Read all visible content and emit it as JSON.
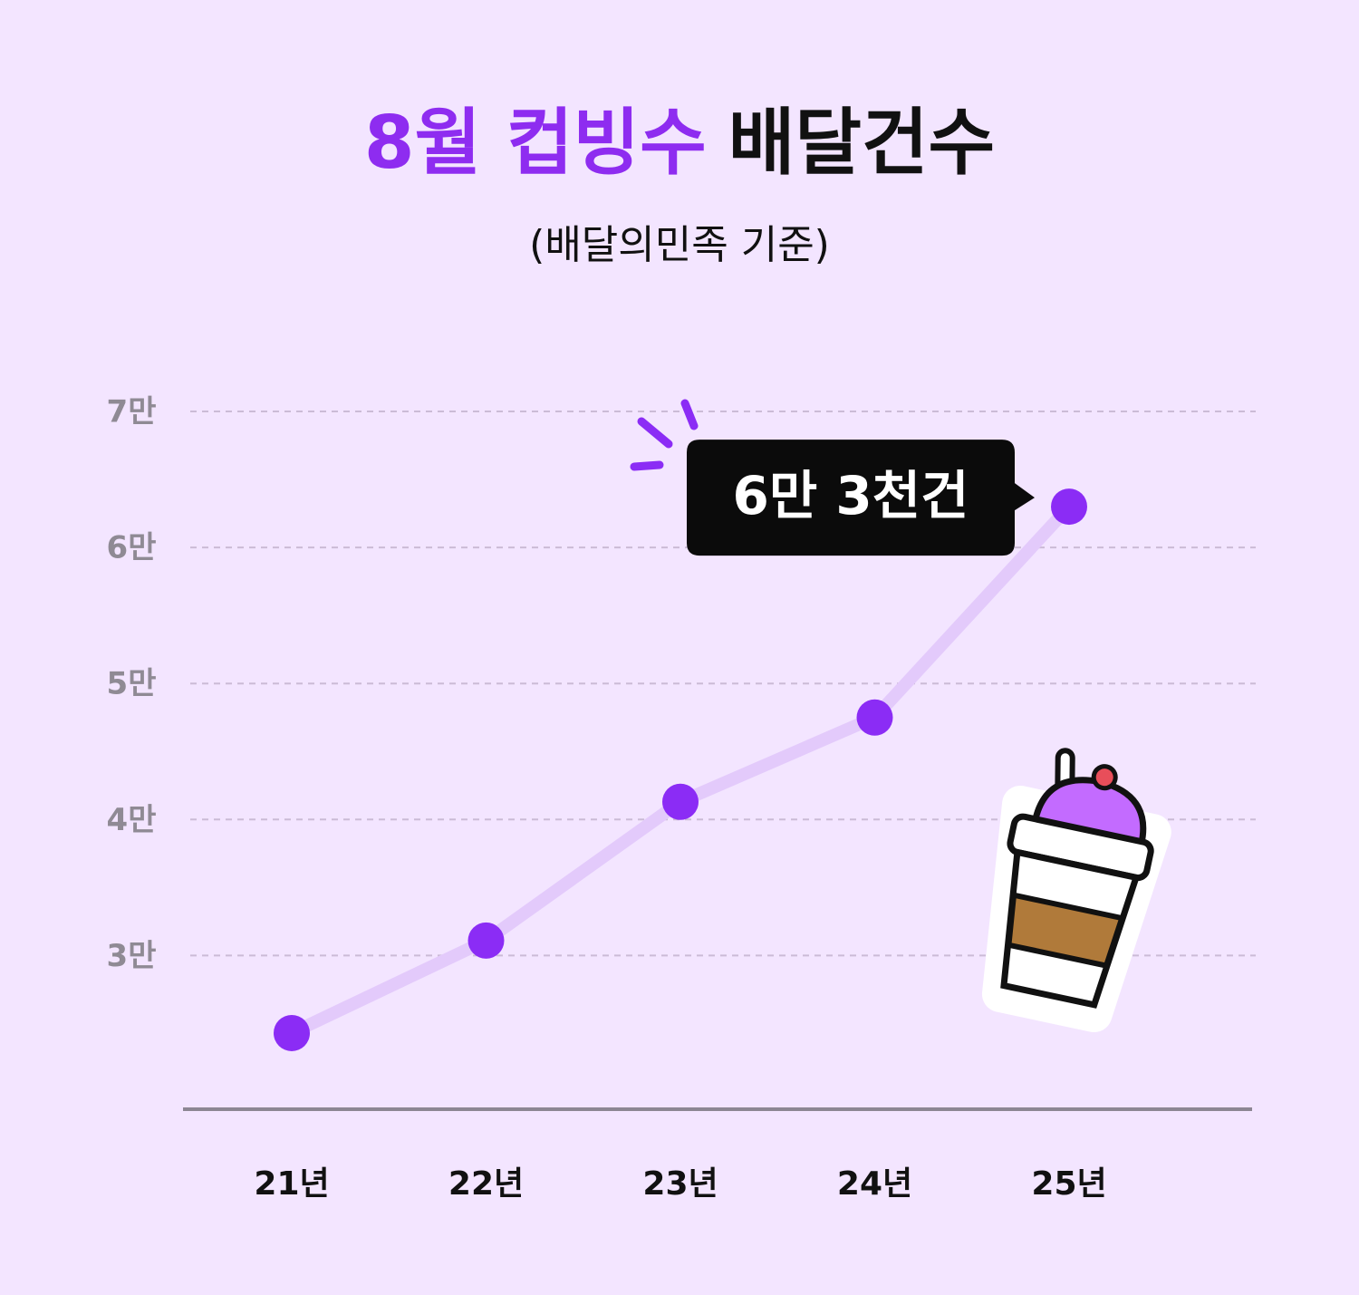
{
  "chart_data": {
    "type": "line",
    "title_parts": [
      "8월 컵빙수",
      "배달건수"
    ],
    "subtitle": "(배달의민족 기준)",
    "categories": [
      "21년",
      "22년",
      "23년",
      "24년",
      "25년"
    ],
    "values": [
      24300,
      31100,
      41300,
      47500,
      63000
    ],
    "value_labels": [
      null,
      null,
      null,
      null,
      "6만 3천건"
    ],
    "color": "#8b2cf5",
    "line_color": "#e3cafb",
    "title_color": "#8e2cf0",
    "ylim": [
      18700,
      70000
    ],
    "yticks": [
      {
        "value": 30000,
        "label": "3만"
      },
      {
        "value": 40000,
        "label": "4만"
      },
      {
        "value": 50000,
        "label": "5만"
      },
      {
        "value": 60000,
        "label": "6만"
      },
      {
        "value": 70000,
        "label": "7만"
      }
    ],
    "grid": true
  }
}
